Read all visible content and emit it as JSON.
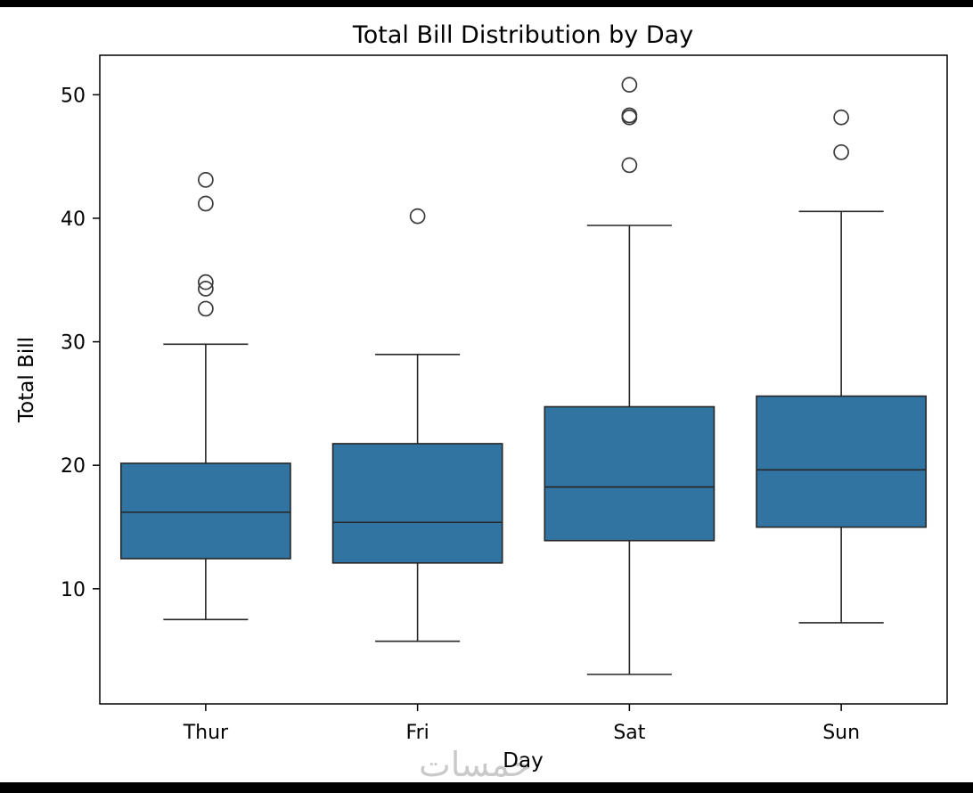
{
  "page": {
    "background": "#ffffff",
    "edge_bar_color": "#000000"
  },
  "watermark": {
    "text": "خمسات"
  },
  "chart_data": {
    "type": "boxplot",
    "title": "Total Bill Distribution by Day",
    "xlabel": "Day",
    "ylabel": "Total Bill",
    "categories": [
      "Thur",
      "Fri",
      "Sat",
      "Sun"
    ],
    "yticks": [
      10,
      20,
      30,
      40,
      50
    ],
    "ylim": [
      0.68,
      53.2
    ],
    "grid": false,
    "legend": "none",
    "box_fill": "#3274a1",
    "box_edge": "#262626",
    "flier_edge": "#3a3a3a",
    "series": [
      {
        "name": "Thur",
        "whisker_low": 7.51,
        "q1": 12.44,
        "median": 16.2,
        "q3": 20.16,
        "whisker_high": 29.8,
        "outliers": [
          32.68,
          34.3,
          34.83,
          41.19,
          43.11
        ]
      },
      {
        "name": "Fri",
        "whisker_low": 5.75,
        "q1": 12.09,
        "median": 15.38,
        "q3": 21.75,
        "whisker_high": 28.97,
        "outliers": [
          40.17
        ]
      },
      {
        "name": "Sat",
        "whisker_low": 3.07,
        "q1": 13.9,
        "median": 18.24,
        "q3": 24.74,
        "whisker_high": 39.42,
        "outliers": [
          44.3,
          48.17,
          48.33,
          50.81
        ]
      },
      {
        "name": "Sun",
        "whisker_low": 7.25,
        "q1": 14.99,
        "median": 19.63,
        "q3": 25.6,
        "whisker_high": 40.55,
        "outliers": [
          45.35,
          48.17
        ]
      }
    ]
  }
}
